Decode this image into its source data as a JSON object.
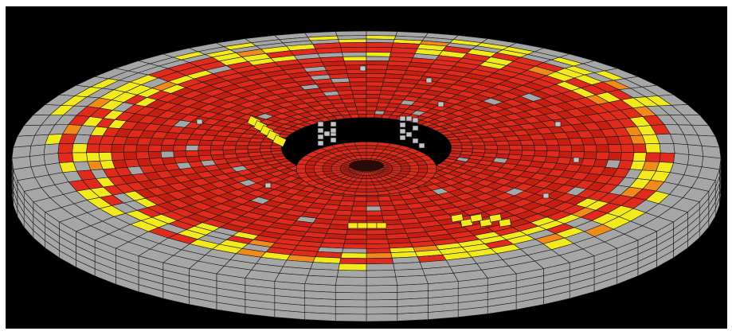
{
  "figure": {
    "type": "3D mesh rendering of a loudspeaker cone with color-coded cells",
    "background_color": "#000000",
    "mesh_line_color": "#1a1a1a",
    "cell_colors": {
      "gray": "#a6a6a6",
      "light_gray": "#c4c4c4",
      "red": "#e02b1c",
      "dark_red": "#c81e12",
      "yellow": "#f2ea1c",
      "orange": "#f08a1a"
    }
  }
}
